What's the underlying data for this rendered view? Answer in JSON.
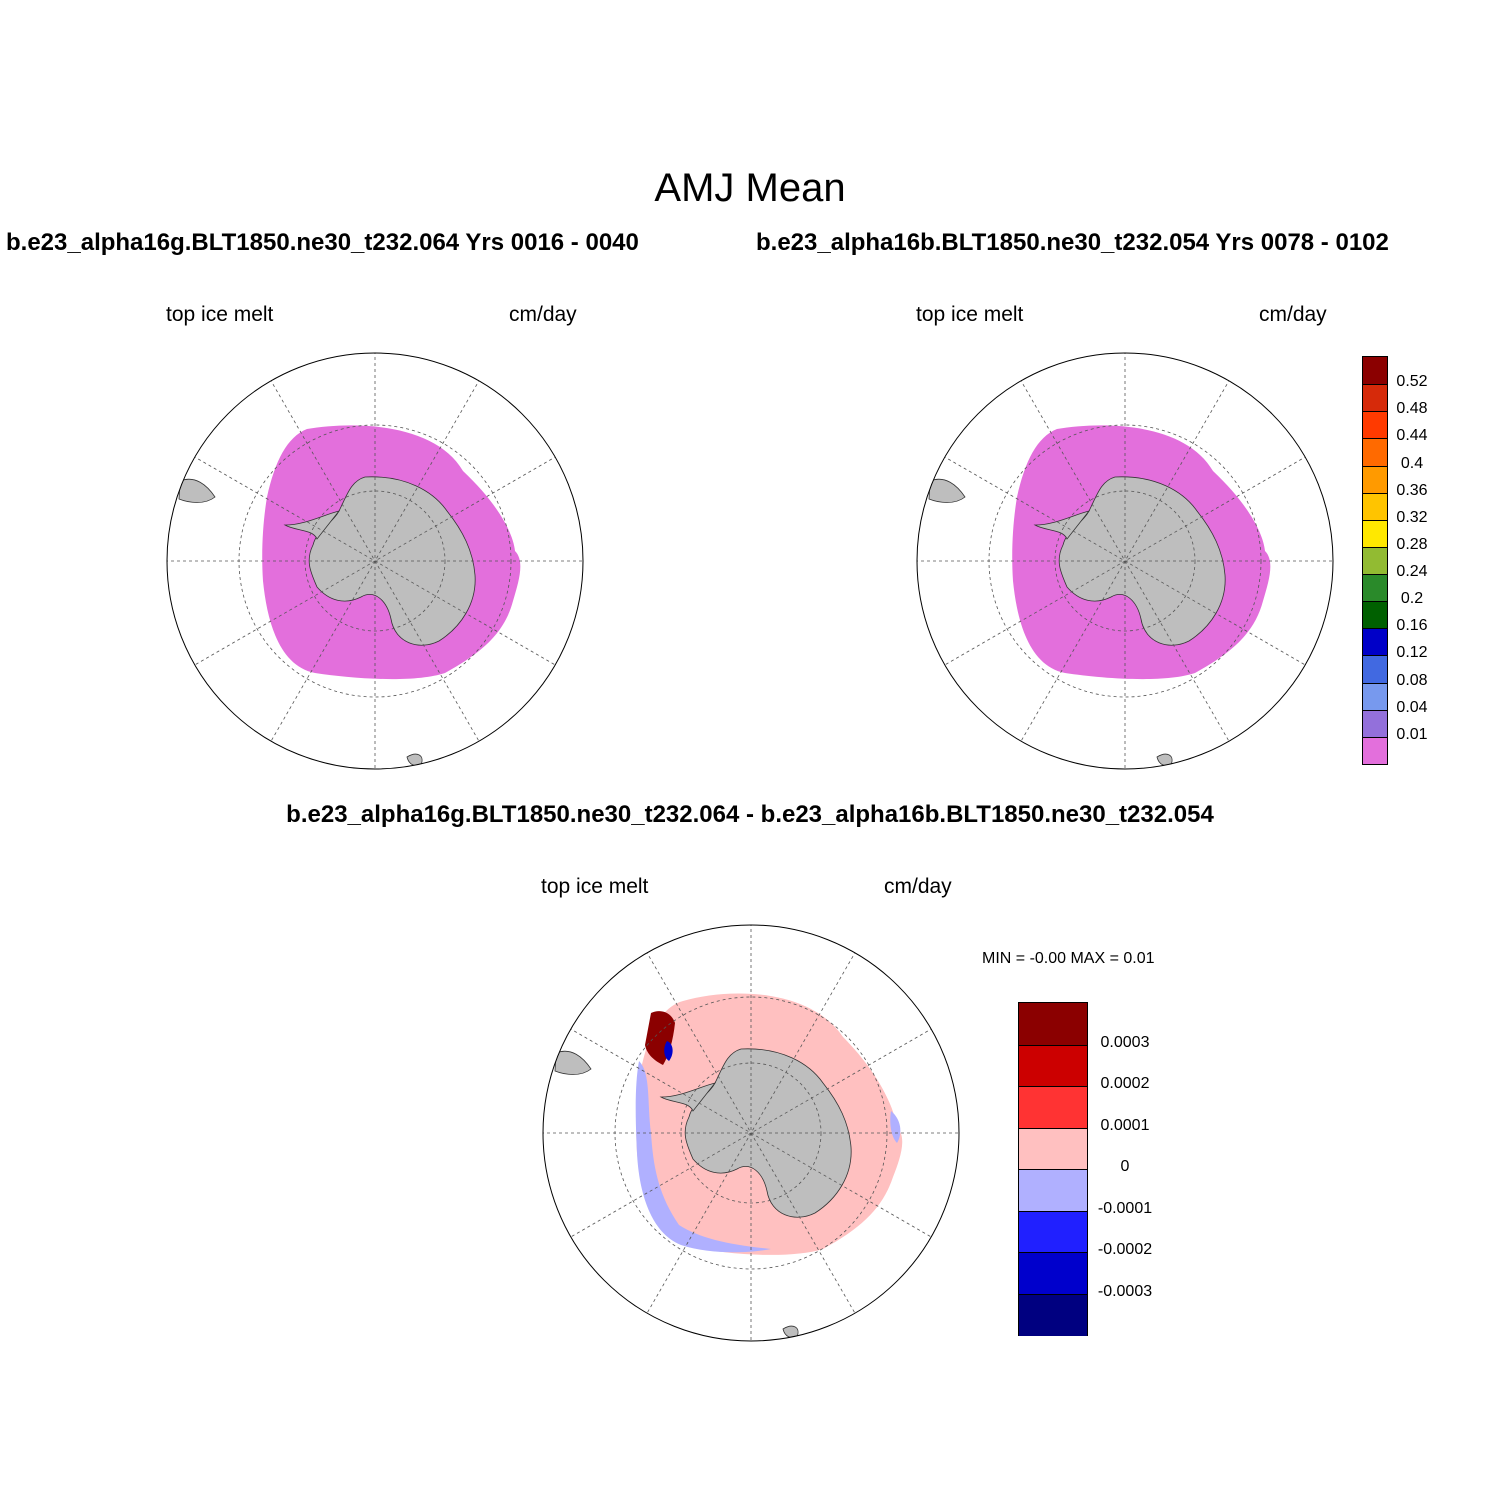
{
  "figure": {
    "title": "AMJ Mean"
  },
  "panels": [
    {
      "title": "b.e23_alpha16g.BLT1850.ne30_t232.064  Yrs 0016 - 0040",
      "variable": "top ice melt",
      "units": "cm/day"
    },
    {
      "title": "b.e23_alpha16b.BLT1850.ne30_t232.054  Yrs 0078 - 0102",
      "variable": "top ice melt",
      "units": "cm/day"
    },
    {
      "title": "b.e23_alpha16g.BLT1850.ne30_t232.064 - b.e23_alpha16b.BLT1850.ne30_t232.054",
      "variable": "top ice melt",
      "units": "cm/day",
      "min_max": "MIN =  -0.00 MAX =   0.01"
    }
  ],
  "colorbars": {
    "mean": {
      "labels": [
        "0.52",
        "0.48",
        "0.44",
        "0.4",
        "0.36",
        "0.32",
        "0.28",
        "0.24",
        "0.2",
        "0.16",
        "0.12",
        "0.08",
        "0.04",
        "0.01"
      ],
      "colors": [
        "#8b0000",
        "#d62a0a",
        "#ff3a00",
        "#ff6a00",
        "#ff9a00",
        "#ffc400",
        "#ffe800",
        "#92bb32",
        "#2a8a2a",
        "#006000",
        "#0000c8",
        "#4169e1",
        "#7799ee",
        "#9370db",
        "#e36fdc"
      ]
    },
    "diff": {
      "labels": [
        "0.0003",
        "0.0002",
        "0.0001",
        "0",
        "-0.0001",
        "-0.0002",
        "-0.0003"
      ],
      "colors": [
        "#8b0000",
        "#cc0000",
        "#ff3333",
        "#ffc0c0",
        "#b0b0ff",
        "#2020ff",
        "#0000cc",
        "#000080"
      ]
    }
  },
  "colors": {
    "mean_ice_fill": "#e36fdc",
    "land": "#bebebe",
    "diff_base": "#ffc0c0",
    "diff_negative": "#b0b0ff",
    "diff_strong_positive": "#8b0000",
    "diff_strong_negative": "#0000cc"
  }
}
